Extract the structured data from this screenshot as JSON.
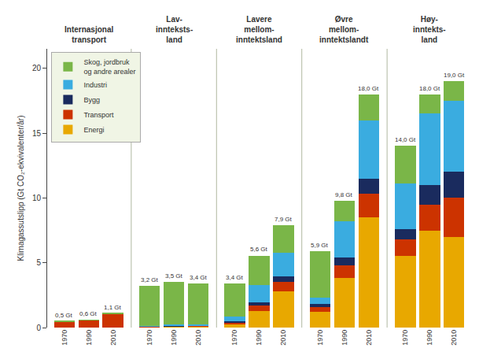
{
  "chart_data": {
    "type": "bar",
    "stacked": true,
    "categories": [
      "1970",
      "1990",
      "2010",
      "1970",
      "1990",
      "2010",
      "1970",
      "1990",
      "2010",
      "1970",
      "1990",
      "2010",
      "1970",
      "1990",
      "2010"
    ],
    "groups": [
      "Internasjonal\ntransport",
      "Lav-\ninnteksts-\nland",
      "Lavere\nmellom-\ninntektsland",
      "Øvre\nmellom-\ninntektslandt",
      "Høy-\ninntekts-\nland"
    ],
    "series": [
      {
        "name": "Energi",
        "color": "#E8A800",
        "values": [
          0.0,
          0.0,
          0.0,
          0.05,
          0.08,
          0.1,
          0.25,
          1.3,
          2.8,
          1.2,
          3.8,
          8.5,
          5.5,
          7.5,
          7.0
        ]
      },
      {
        "name": "Transport",
        "color": "#CC3300",
        "values": [
          0.48,
          0.57,
          1.05,
          0.03,
          0.04,
          0.04,
          0.15,
          0.4,
          0.7,
          0.4,
          1.0,
          1.8,
          1.3,
          2.0,
          3.0
        ]
      },
      {
        "name": "Bygg",
        "color": "#1A2B5E",
        "values": [
          0.0,
          0.0,
          0.0,
          0.02,
          0.03,
          0.03,
          0.08,
          0.25,
          0.45,
          0.2,
          0.6,
          1.2,
          0.8,
          1.5,
          2.0
        ]
      },
      {
        "name": "Industri",
        "color": "#3AACE0",
        "values": [
          0.0,
          0.0,
          0.0,
          0.05,
          0.1,
          0.07,
          0.4,
          1.3,
          1.8,
          0.5,
          2.8,
          4.5,
          3.5,
          5.5,
          5.5
        ]
      },
      {
        "name": "Skog, jordbruk\nog andre arealer",
        "color": "#7AB648",
        "values": [
          0.02,
          0.03,
          0.05,
          3.05,
          3.25,
          3.16,
          2.52,
          2.25,
          2.15,
          3.6,
          1.6,
          2.0,
          2.9,
          1.5,
          1.5
        ]
      }
    ],
    "totals": {
      "values": [
        0.5,
        0.6,
        1.1,
        3.2,
        3.5,
        3.4,
        3.4,
        5.6,
        7.9,
        5.9,
        9.8,
        18.0,
        14.0,
        18.0,
        19.0
      ],
      "value_labels": [
        "0,5 Gt",
        "0,6 Gt",
        "1,1 Gt",
        "3,2 Gt",
        "3,5 Gt",
        "3,4 Gt",
        "3,4 Gt",
        "5,6 Gt",
        "7,9 Gt",
        "5,9 Gt",
        "9,8 Gt",
        "18,0 Gt",
        "14,0 Gt",
        "18,0 Gt",
        "19,0 Gt"
      ]
    },
    "ylabel": "Klimagassutslipp (Gt CO₂-ekvivalenter/år)",
    "ylim": [
      0,
      21.5
    ],
    "yticks": [
      0,
      5,
      10,
      15,
      20
    ],
    "grid": false,
    "legend": "upper left"
  }
}
